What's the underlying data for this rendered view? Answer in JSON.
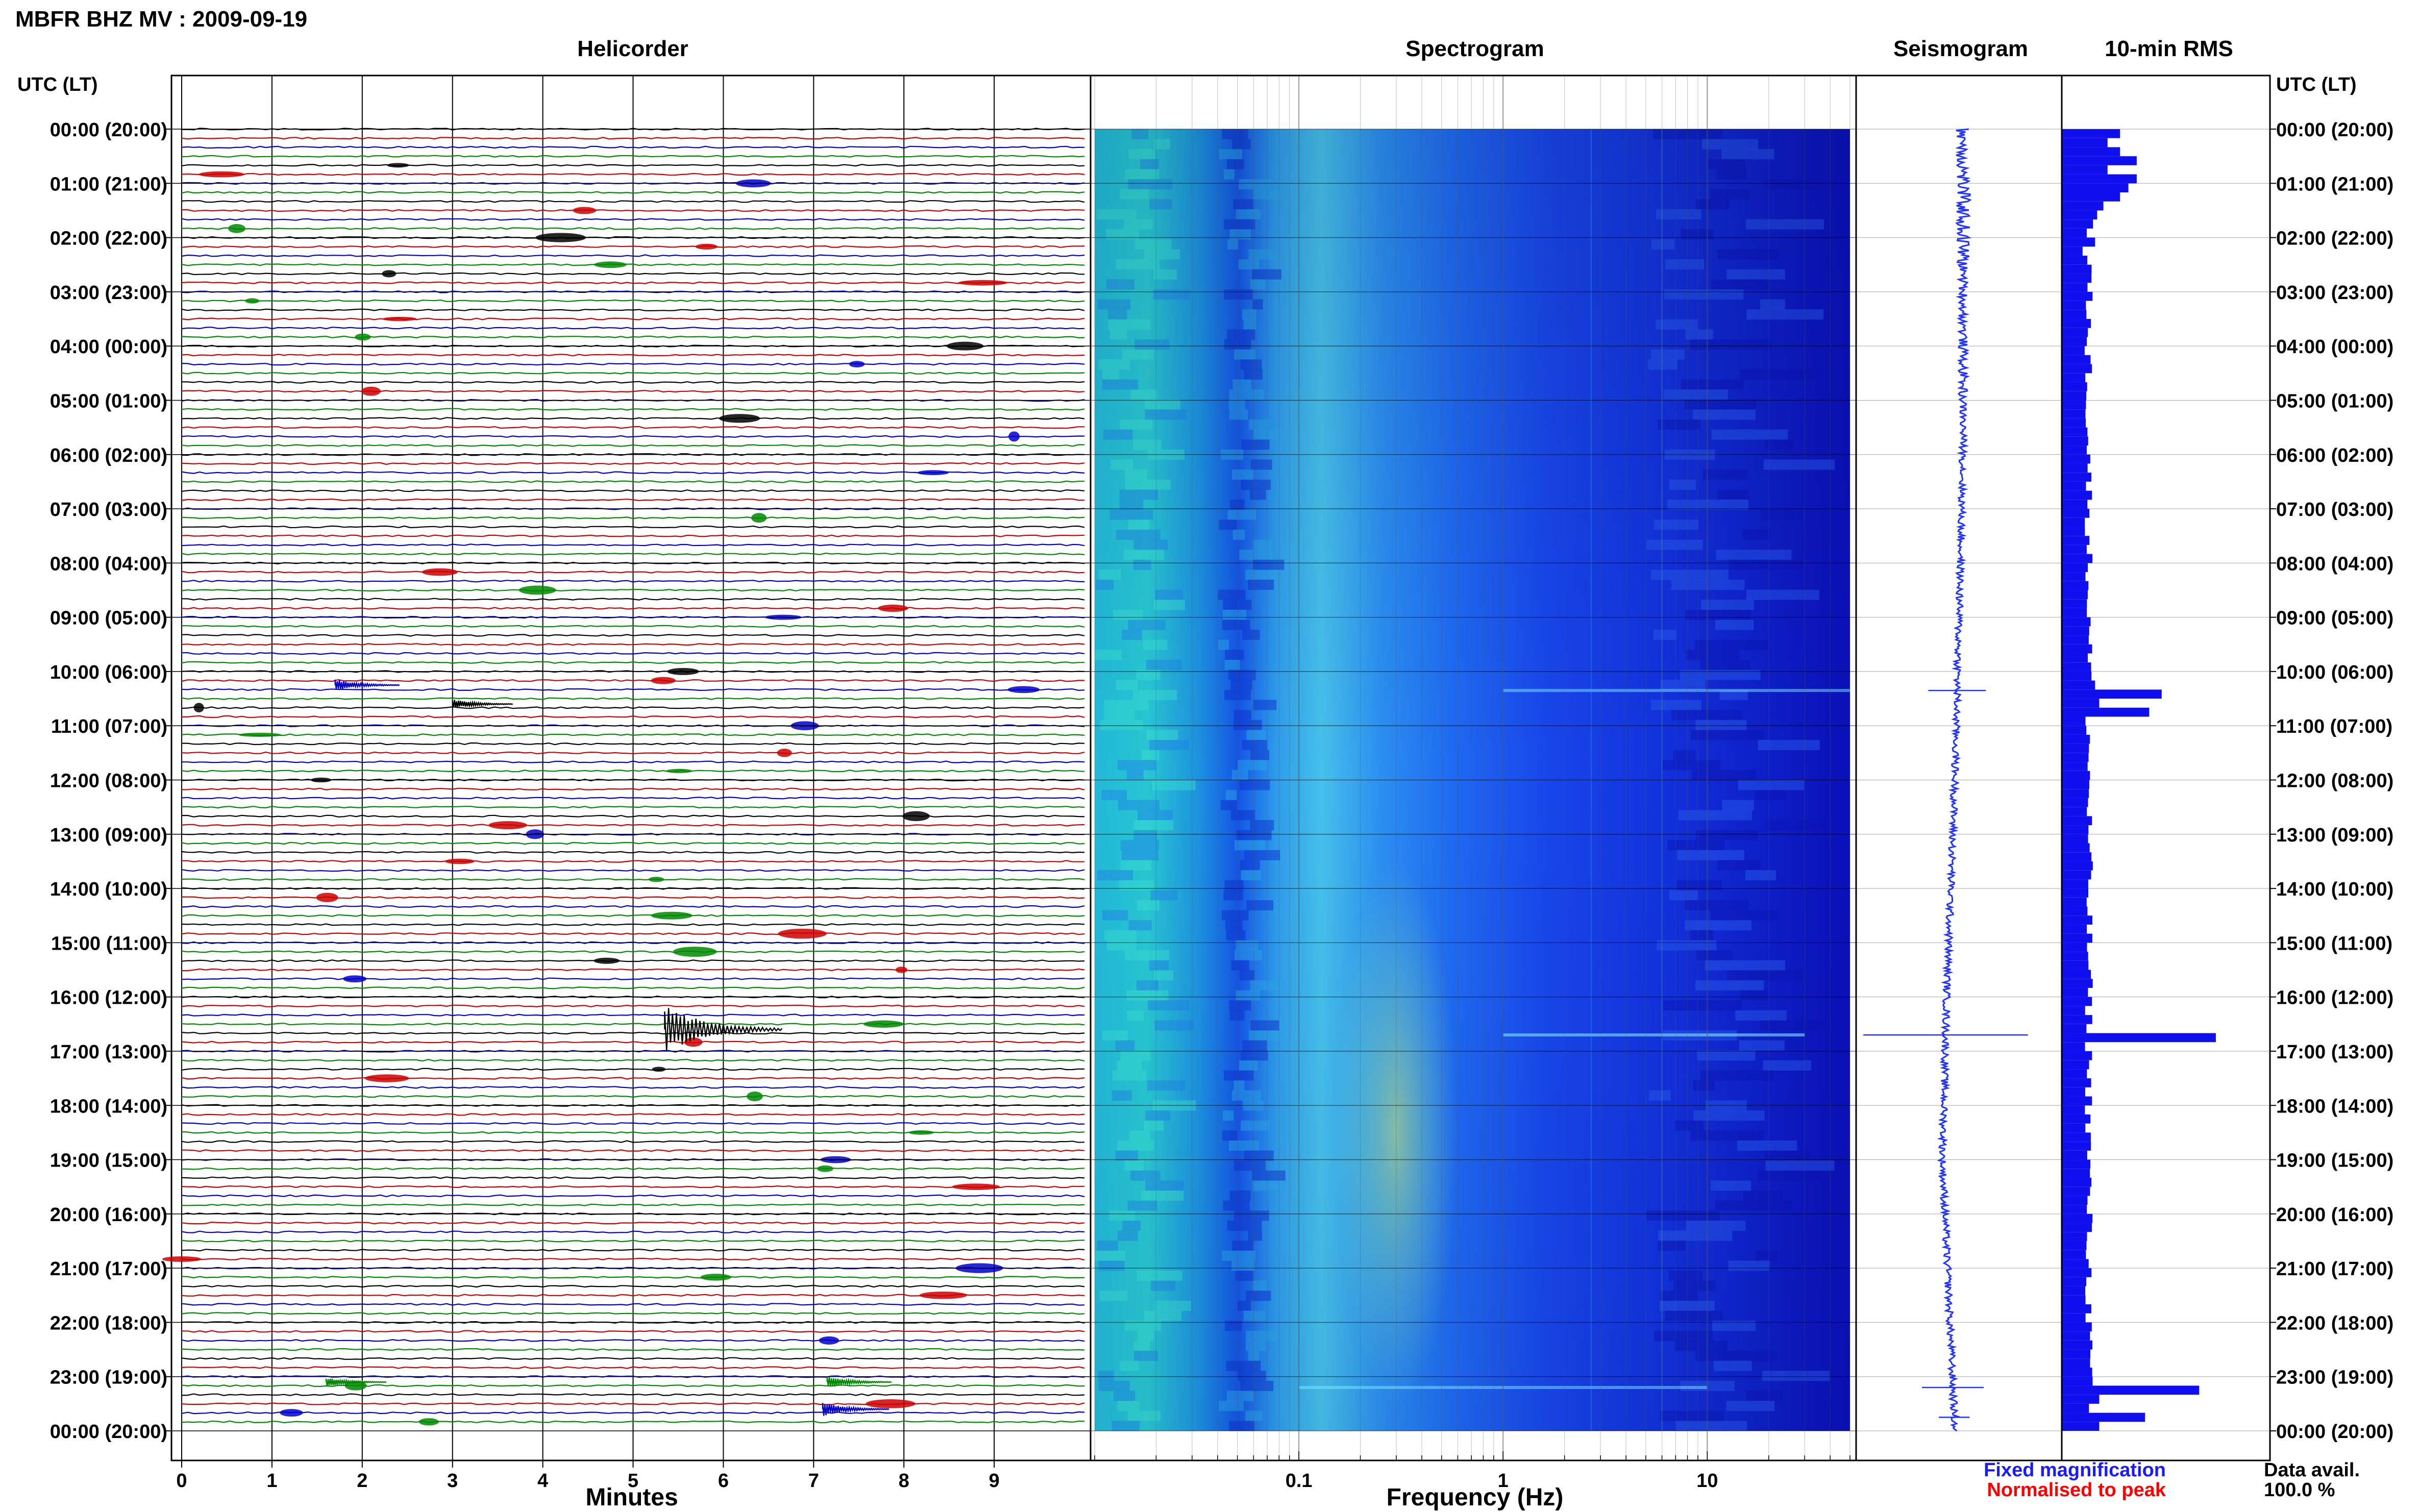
{
  "figure": {
    "title": "MBFR BHZ MV : 2009-09-19",
    "time_axis_label": "UTC (LT)",
    "fixed_magnification_note": "Fixed magnification",
    "normalised_note": "Normalised to peak",
    "data_avail_label": "Data avail.",
    "data_avail_value": "100.0 %"
  },
  "colors": {
    "trace_cycle": [
      "#000000",
      "#cc0000",
      "#0000cc",
      "#008800"
    ],
    "seismogram": "#2233ff",
    "rms_bar": "#1010ee",
    "note_blue": "#1a1aff",
    "note_red": "#ff0000"
  },
  "chart_data": [
    {
      "type": "line",
      "panel": "helicorder",
      "title": "Helicorder",
      "xlabel": "Minutes",
      "xlim": [
        0,
        10
      ],
      "x_tick_labels": [
        "0",
        "1",
        "2",
        "3",
        "4",
        "5",
        "6",
        "7",
        "8",
        "9"
      ],
      "y_tick_labels": [
        "00:00 (20:00)",
        "01:00 (21:00)",
        "02:00 (22:00)",
        "03:00 (23:00)",
        "04:00 (00:00)",
        "05:00 (01:00)",
        "06:00 (02:00)",
        "07:00 (03:00)",
        "08:00 (04:00)",
        "09:00 (05:00)",
        "10:00 (06:00)",
        "11:00 (07:00)",
        "12:00 (08:00)",
        "13:00 (09:00)",
        "14:00 (10:00)",
        "15:00 (11:00)",
        "16:00 (12:00)",
        "17:00 (13:00)",
        "18:00 (14:00)",
        "19:00 (15:00)",
        "20:00 (16:00)",
        "21:00 (17:00)",
        "22:00 (18:00)",
        "23:00 (19:00)",
        "00:00 (20:00)"
      ],
      "traces_per_hour": 6,
      "trace_count": 144,
      "notable_events": [
        {
          "hour": 10.25,
          "minute": 1.7,
          "relative_amplitude": 0.9,
          "color": "blue"
        },
        {
          "hour": 10.6,
          "minute": 3.0,
          "relative_amplitude": 0.7,
          "color": "black"
        },
        {
          "hour": 16.6,
          "minute": 5.35,
          "relative_amplitude": 3.5,
          "color": "black"
        },
        {
          "hour": 23.1,
          "minute": 1.6,
          "relative_amplitude": 0.7,
          "color": "green"
        },
        {
          "hour": 23.1,
          "minute": 7.15,
          "relative_amplitude": 0.9,
          "color": "green"
        },
        {
          "hour": 23.6,
          "minute": 7.1,
          "relative_amplitude": 1.0,
          "color": "blue"
        }
      ]
    },
    {
      "type": "heatmap",
      "panel": "spectrogram",
      "title": "Spectrogram",
      "xlabel": "Frequency (Hz)",
      "x_scale": "log",
      "xlim": [
        0.01,
        50
      ],
      "x_tick_labels": [
        "0.1",
        "1",
        "10"
      ],
      "colormap": "jet",
      "features": [
        {
          "description": "broad energy band",
          "freq_range_hz": [
            0.15,
            0.6
          ]
        },
        {
          "description": "narrow spectral line",
          "freq_hz": 2.7
        },
        {
          "description": "narrow spectral line",
          "freq_hz": 6.0
        }
      ],
      "time_bands": [
        {
          "hour": 10.35,
          "freq_range_hz": [
            1.0,
            50.0
          ],
          "strength": 0.5
        },
        {
          "hour": 16.7,
          "freq_range_hz": [
            1.0,
            30.0
          ],
          "strength": 0.6
        },
        {
          "hour": 23.2,
          "freq_range_hz": [
            0.1,
            10.0
          ],
          "strength": 0.5
        }
      ]
    },
    {
      "type": "line",
      "panel": "seismogram",
      "title": "Seismogram",
      "baseline_drift": [
        [
          0,
          0.52
        ],
        [
          6,
          0.52
        ],
        [
          12,
          0.48
        ],
        [
          16,
          0.44
        ],
        [
          19,
          0.42
        ],
        [
          24,
          0.48
        ]
      ],
      "spikes": [
        {
          "hour": 10.35,
          "amplitude": 0.28
        },
        {
          "hour": 16.7,
          "amplitude": 0.8
        },
        {
          "hour": 23.2,
          "amplitude": 0.3
        },
        {
          "hour": 23.75,
          "amplitude": 0.15
        }
      ]
    },
    {
      "type": "bar",
      "panel": "rms",
      "title": "10-min RMS",
      "orientation": "horizontal",
      "bin_minutes": 10,
      "xlim": [
        0,
        1
      ],
      "bars": [
        {
          "hour": 0.0,
          "value": 0.28
        },
        {
          "hour": 0.17,
          "value": 0.22
        },
        {
          "hour": 0.33,
          "value": 0.28
        },
        {
          "hour": 0.5,
          "value": 0.36
        },
        {
          "hour": 0.67,
          "value": 0.22
        },
        {
          "hour": 0.83,
          "value": 0.36
        },
        {
          "hour": 1.0,
          "value": 0.32
        },
        {
          "hour": 1.17,
          "value": 0.28
        },
        {
          "hour": 1.33,
          "value": 0.2
        },
        {
          "hour": 1.5,
          "value": 0.17
        },
        {
          "hour": 1.67,
          "value": 0.15
        },
        {
          "hour": 1.83,
          "value": 0.12
        },
        {
          "hour": 2.0,
          "value": 0.16
        },
        {
          "hour": 2.17,
          "value": 0.1
        },
        {
          "hour": 3.5,
          "value": 0.14
        },
        {
          "hour": 4.0,
          "value": 0.11
        },
        {
          "hour": 10.17,
          "value": 0.16
        },
        {
          "hour": 10.33,
          "value": 0.48
        },
        {
          "hour": 10.5,
          "value": 0.18
        },
        {
          "hour": 10.67,
          "value": 0.42
        },
        {
          "hour": 16.67,
          "value": 0.74
        },
        {
          "hour": 23.17,
          "value": 0.66
        },
        {
          "hour": 23.33,
          "value": 0.18
        },
        {
          "hour": 23.67,
          "value": 0.4
        },
        {
          "hour": 23.83,
          "value": 0.18
        }
      ],
      "baseline_value": 0.13
    }
  ]
}
